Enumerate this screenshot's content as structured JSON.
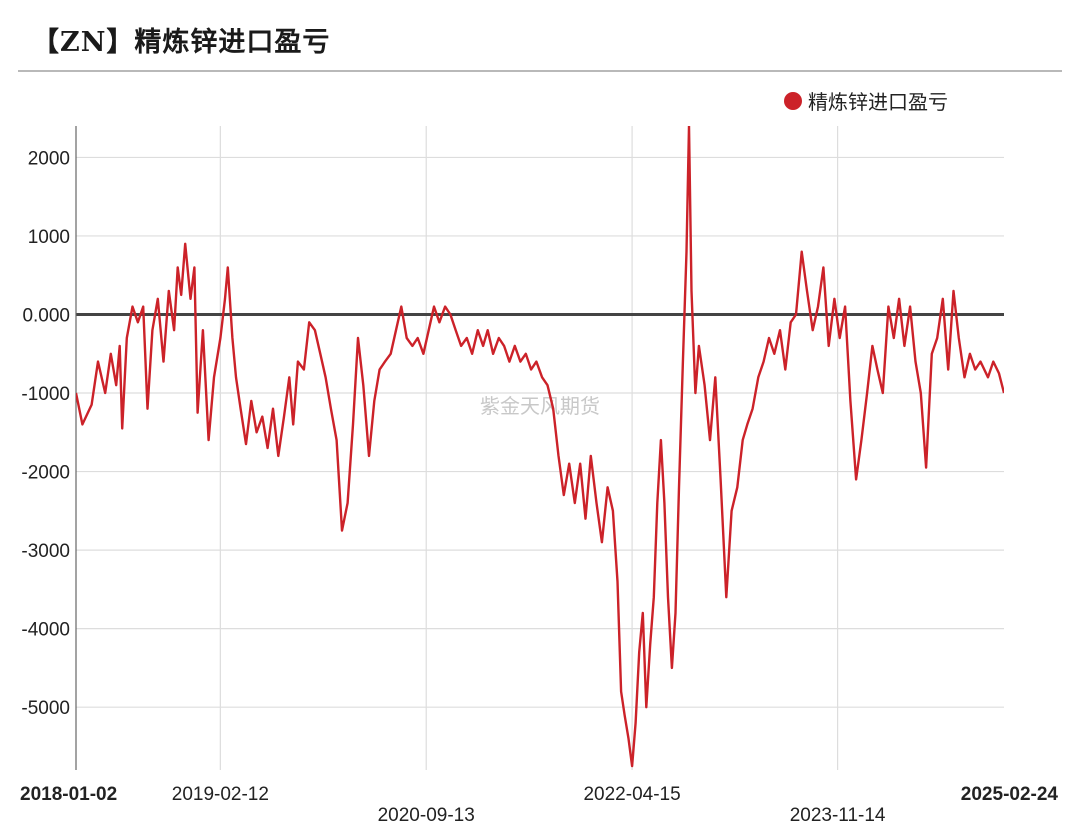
{
  "header": {
    "title": "【ZN】精炼锌进口盈亏"
  },
  "legend": {
    "label": "精炼锌进口盈亏"
  },
  "colors": {
    "series": "#cc2229",
    "zero_line": "#444444",
    "grid": "#dddddd"
  },
  "watermark": "紫金天风期货",
  "chart_data": {
    "type": "line",
    "title": "【ZN】精炼锌进口盈亏",
    "xlabel": "",
    "ylabel": "",
    "ylim": [
      -5800,
      2400
    ],
    "yticks": [
      2000,
      1000,
      0,
      -1000,
      -2000,
      -3000,
      -4000,
      -5000
    ],
    "ytick_labels": [
      "2000",
      "1000",
      "0.000",
      "-1000",
      "-2000",
      "-3000",
      "-4000",
      "-5000"
    ],
    "xlim": [
      "2018-01-02",
      "2025-02-24"
    ],
    "xticks": [
      {
        "date": "2018-01-02",
        "label": "2018-01-02",
        "bold": true,
        "row": 0
      },
      {
        "date": "2019-02-12",
        "label": "2019-02-12",
        "bold": false,
        "row": 0
      },
      {
        "date": "2020-09-13",
        "label": "2020-09-13",
        "bold": false,
        "row": 1
      },
      {
        "date": "2022-04-15",
        "label": "2022-04-15",
        "bold": false,
        "row": 0
      },
      {
        "date": "2023-11-14",
        "label": "2023-11-14",
        "bold": false,
        "row": 1
      },
      {
        "date": "2025-02-24",
        "label": "2025-02-24",
        "bold": true,
        "row": 0
      }
    ],
    "grid": true,
    "legend_position": "top-right",
    "series": [
      {
        "name": "精炼锌进口盈亏",
        "points": [
          [
            "2018-01-02",
            -1000
          ],
          [
            "2018-01-20",
            -1400
          ],
          [
            "2018-02-15",
            -1150
          ],
          [
            "2018-03-05",
            -600
          ],
          [
            "2018-03-25",
            -1000
          ],
          [
            "2018-04-10",
            -500
          ],
          [
            "2018-04-25",
            -900
          ],
          [
            "2018-05-05",
            -400
          ],
          [
            "2018-05-12",
            -1450
          ],
          [
            "2018-05-25",
            -300
          ],
          [
            "2018-06-10",
            100
          ],
          [
            "2018-06-25",
            -100
          ],
          [
            "2018-07-10",
            100
          ],
          [
            "2018-07-22",
            -1200
          ],
          [
            "2018-08-05",
            -200
          ],
          [
            "2018-08-20",
            200
          ],
          [
            "2018-09-05",
            -600
          ],
          [
            "2018-09-20",
            300
          ],
          [
            "2018-10-05",
            -200
          ],
          [
            "2018-10-15",
            600
          ],
          [
            "2018-10-25",
            250
          ],
          [
            "2018-11-05",
            900
          ],
          [
            "2018-11-20",
            200
          ],
          [
            "2018-12-01",
            600
          ],
          [
            "2018-12-10",
            -1250
          ],
          [
            "2018-12-25",
            -200
          ],
          [
            "2019-01-10",
            -1600
          ],
          [
            "2019-01-25",
            -800
          ],
          [
            "2019-02-12",
            -300
          ],
          [
            "2019-02-25",
            200
          ],
          [
            "2019-03-05",
            600
          ],
          [
            "2019-03-18",
            -300
          ],
          [
            "2019-03-28",
            -800
          ],
          [
            "2019-04-10",
            -1200
          ],
          [
            "2019-04-25",
            -1650
          ],
          [
            "2019-05-10",
            -1100
          ],
          [
            "2019-05-25",
            -1500
          ],
          [
            "2019-06-10",
            -1300
          ],
          [
            "2019-06-25",
            -1700
          ],
          [
            "2019-07-10",
            -1200
          ],
          [
            "2019-07-25",
            -1800
          ],
          [
            "2019-08-10",
            -1300
          ],
          [
            "2019-08-25",
            -800
          ],
          [
            "2019-09-05",
            -1400
          ],
          [
            "2019-09-18",
            -600
          ],
          [
            "2019-10-05",
            -700
          ],
          [
            "2019-10-20",
            -100
          ],
          [
            "2019-11-05",
            -200
          ],
          [
            "2019-11-20",
            -500
          ],
          [
            "2019-12-05",
            -800
          ],
          [
            "2019-12-20",
            -1200
          ],
          [
            "2020-01-05",
            -1600
          ],
          [
            "2020-01-20",
            -2750
          ],
          [
            "2020-02-05",
            -2400
          ],
          [
            "2020-02-20",
            -1400
          ],
          [
            "2020-03-05",
            -300
          ],
          [
            "2020-03-20",
            -900
          ],
          [
            "2020-04-05",
            -1800
          ],
          [
            "2020-04-20",
            -1100
          ],
          [
            "2020-05-05",
            -700
          ],
          [
            "2020-05-20",
            -600
          ],
          [
            "2020-06-05",
            -500
          ],
          [
            "2020-06-20",
            -200
          ],
          [
            "2020-07-05",
            100
          ],
          [
            "2020-07-20",
            -300
          ],
          [
            "2020-08-05",
            -400
          ],
          [
            "2020-08-20",
            -300
          ],
          [
            "2020-09-05",
            -500
          ],
          [
            "2020-09-20",
            -200
          ],
          [
            "2020-10-05",
            100
          ],
          [
            "2020-10-20",
            -100
          ],
          [
            "2020-11-05",
            100
          ],
          [
            "2020-11-20",
            0
          ],
          [
            "2020-12-05",
            -200
          ],
          [
            "2020-12-20",
            -400
          ],
          [
            "2021-01-05",
            -300
          ],
          [
            "2021-01-20",
            -500
          ],
          [
            "2021-02-05",
            -200
          ],
          [
            "2021-02-20",
            -400
          ],
          [
            "2021-03-05",
            -200
          ],
          [
            "2021-03-20",
            -500
          ],
          [
            "2021-04-05",
            -300
          ],
          [
            "2021-04-20",
            -400
          ],
          [
            "2021-05-05",
            -600
          ],
          [
            "2021-05-20",
            -400
          ],
          [
            "2021-06-05",
            -600
          ],
          [
            "2021-06-20",
            -500
          ],
          [
            "2021-07-05",
            -700
          ],
          [
            "2021-07-20",
            -600
          ],
          [
            "2021-08-05",
            -800
          ],
          [
            "2021-08-20",
            -900
          ],
          [
            "2021-09-05",
            -1200
          ],
          [
            "2021-09-20",
            -1800
          ],
          [
            "2021-10-05",
            -2300
          ],
          [
            "2021-10-20",
            -1900
          ],
          [
            "2021-11-05",
            -2400
          ],
          [
            "2021-11-20",
            -1900
          ],
          [
            "2021-12-05",
            -2600
          ],
          [
            "2021-12-20",
            -1800
          ],
          [
            "2022-01-05",
            -2400
          ],
          [
            "2022-01-20",
            -2900
          ],
          [
            "2022-02-05",
            -2200
          ],
          [
            "2022-02-20",
            -2500
          ],
          [
            "2022-03-05",
            -3400
          ],
          [
            "2022-03-15",
            -4800
          ],
          [
            "2022-03-25",
            -5100
          ],
          [
            "2022-04-05",
            -5400
          ],
          [
            "2022-04-15",
            -5750
          ],
          [
            "2022-04-25",
            -5200
          ],
          [
            "2022-05-05",
            -4300
          ],
          [
            "2022-05-15",
            -3800
          ],
          [
            "2022-05-25",
            -5000
          ],
          [
            "2022-06-05",
            -4200
          ],
          [
            "2022-06-15",
            -3600
          ],
          [
            "2022-06-25",
            -2400
          ],
          [
            "2022-07-05",
            -1600
          ],
          [
            "2022-07-15",
            -2400
          ],
          [
            "2022-07-25",
            -3600
          ],
          [
            "2022-08-05",
            -4500
          ],
          [
            "2022-08-15",
            -3800
          ],
          [
            "2022-08-25",
            -2200
          ],
          [
            "2022-09-05",
            -600
          ],
          [
            "2022-09-15",
            800
          ],
          [
            "2022-09-22",
            2400
          ],
          [
            "2022-09-29",
            300
          ],
          [
            "2022-10-10",
            -1000
          ],
          [
            "2022-10-20",
            -400
          ],
          [
            "2022-11-05",
            -900
          ],
          [
            "2022-11-20",
            -1600
          ],
          [
            "2022-12-05",
            -800
          ],
          [
            "2022-12-20",
            -2100
          ],
          [
            "2023-01-05",
            -3600
          ],
          [
            "2023-01-20",
            -2500
          ],
          [
            "2023-02-05",
            -2200
          ],
          [
            "2023-02-20",
            -1600
          ],
          [
            "2023-03-05",
            -1400
          ],
          [
            "2023-03-20",
            -1200
          ],
          [
            "2023-04-05",
            -800
          ],
          [
            "2023-04-20",
            -600
          ],
          [
            "2023-05-05",
            -300
          ],
          [
            "2023-05-20",
            -500
          ],
          [
            "2023-06-05",
            -200
          ],
          [
            "2023-06-20",
            -700
          ],
          [
            "2023-07-05",
            -100
          ],
          [
            "2023-07-20",
            0
          ],
          [
            "2023-08-05",
            800
          ],
          [
            "2023-08-20",
            300
          ],
          [
            "2023-09-05",
            -200
          ],
          [
            "2023-09-20",
            100
          ],
          [
            "2023-10-05",
            600
          ],
          [
            "2023-10-20",
            -400
          ],
          [
            "2023-11-05",
            200
          ],
          [
            "2023-11-20",
            -300
          ],
          [
            "2023-12-05",
            100
          ],
          [
            "2023-12-20",
            -1100
          ],
          [
            "2024-01-05",
            -2100
          ],
          [
            "2024-01-20",
            -1600
          ],
          [
            "2024-02-05",
            -1000
          ],
          [
            "2024-02-20",
            -400
          ],
          [
            "2024-03-05",
            -700
          ],
          [
            "2024-03-20",
            -1000
          ],
          [
            "2024-04-05",
            100
          ],
          [
            "2024-04-20",
            -300
          ],
          [
            "2024-05-05",
            200
          ],
          [
            "2024-05-20",
            -400
          ],
          [
            "2024-06-05",
            100
          ],
          [
            "2024-06-20",
            -600
          ],
          [
            "2024-07-05",
            -1000
          ],
          [
            "2024-07-20",
            -1950
          ],
          [
            "2024-08-05",
            -500
          ],
          [
            "2024-08-20",
            -300
          ],
          [
            "2024-09-05",
            200
          ],
          [
            "2024-09-20",
            -700
          ],
          [
            "2024-10-05",
            300
          ],
          [
            "2024-10-20",
            -300
          ],
          [
            "2024-11-05",
            -800
          ],
          [
            "2024-11-20",
            -500
          ],
          [
            "2024-12-05",
            -700
          ],
          [
            "2024-12-20",
            -600
          ],
          [
            "2025-01-10",
            -800
          ],
          [
            "2025-01-25",
            -600
          ],
          [
            "2025-02-10",
            -750
          ],
          [
            "2025-02-24",
            -1000
          ]
        ]
      }
    ]
  }
}
